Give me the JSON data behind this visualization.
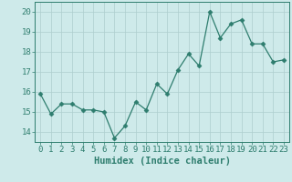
{
  "x": [
    0,
    1,
    2,
    3,
    4,
    5,
    6,
    7,
    8,
    9,
    10,
    11,
    12,
    13,
    14,
    15,
    16,
    17,
    18,
    19,
    20,
    21,
    22,
    23
  ],
  "y": [
    15.9,
    14.9,
    15.4,
    15.4,
    15.1,
    15.1,
    15.0,
    13.7,
    14.3,
    15.5,
    15.1,
    16.4,
    15.9,
    17.1,
    17.9,
    17.3,
    20.0,
    18.7,
    19.4,
    19.6,
    18.4,
    18.4,
    17.5,
    17.6
  ],
  "line_color": "#2e7d6e",
  "marker": "D",
  "marker_size": 2.5,
  "bg_color": "#ceeaea",
  "grid_color": "#aecece",
  "axes_color": "#2e7d6e",
  "xlabel": "Humidex (Indice chaleur)",
  "xlim": [
    -0.5,
    23.5
  ],
  "ylim": [
    13.5,
    20.5
  ],
  "yticks": [
    14,
    15,
    16,
    17,
    18,
    19,
    20
  ],
  "xticks": [
    0,
    1,
    2,
    3,
    4,
    5,
    6,
    7,
    8,
    9,
    10,
    11,
    12,
    13,
    14,
    15,
    16,
    17,
    18,
    19,
    20,
    21,
    22,
    23
  ],
  "tick_label_fontsize": 6.5,
  "xlabel_fontsize": 7.5
}
